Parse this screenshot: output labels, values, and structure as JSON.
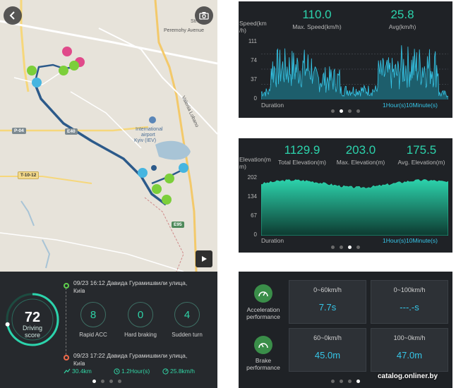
{
  "map": {
    "labels": {
      "street_top": "Street",
      "peremohy": "Peremohy Avenue",
      "valeriia": "Valeriia Lobano",
      "airport_line1": "International",
      "airport_line2": "airport",
      "airport_line3": "Kyiv (IEV)"
    },
    "road_badges": [
      "P-04",
      "E40",
      "T-10-12",
      "E95"
    ],
    "icons": [
      "back-arrow-icon",
      "camera-icon",
      "play-icon"
    ]
  },
  "summary": {
    "score": "72",
    "score_label_1": "Driving",
    "score_label_2": "score",
    "start_line1": "09/23 16:12 Давида Гурамишвили улица,",
    "start_line2": "Київ",
    "end_line1": "09/23 17:22 Давида Гурамишвили улица,",
    "end_line2": "Київ",
    "stats": [
      {
        "value": "8",
        "label": "Rapid ACC"
      },
      {
        "value": "0",
        "label": "Hard braking"
      },
      {
        "value": "4",
        "label": "Sudden turn"
      }
    ],
    "distance": "30.4km",
    "duration": "1.2Hour(s)",
    "avg_speed": "25.8km/h",
    "score_fraction": 0.72
  },
  "speed_panel": {
    "ylabel_1": "Speed(km",
    "ylabel_2": "/h)",
    "max_value": "110.0",
    "max_label": "Max. Speed(km/h)",
    "avg_value": "25.8",
    "avg_label": "Avg(km/h)",
    "ticks": [
      "111",
      "74",
      "37",
      "0"
    ],
    "duration_label": "Duration",
    "x_unit": "1Hour(s)10Minute(s)"
  },
  "elevation_panel": {
    "ylabel_1": "Elevation(m",
    "ylabel_2": "m)",
    "total_value": "1129.9",
    "total_label": "Total Elevation(m)",
    "max_value": "203.0",
    "max_label": "Max. Elevation(m)",
    "avg_value": "175.5",
    "avg_label": "Avg. Elevation(m)",
    "ticks": [
      "202",
      "134",
      "67",
      "0"
    ],
    "duration_label": "Duration",
    "x_unit": "1Hour(s)10Minute(s)"
  },
  "performance": {
    "acc_label_1": "Acceleration",
    "acc_label_2": "performance",
    "brake_label_1": "Brake",
    "brake_label_2": "performance",
    "cards": [
      {
        "title": "0~60km/h",
        "value": "7.7s"
      },
      {
        "title": "0~100km/h",
        "value": "---.-s"
      },
      {
        "title": "60~0km/h",
        "value": "45.0m"
      },
      {
        "title": "100~0km/h",
        "value": "47.0m"
      }
    ]
  },
  "watermark": "catalog.onliner.by",
  "colors": {
    "accent_green": "#2cd3ac",
    "accent_cyan": "#36c6e8",
    "panel_bg": "#1f2226"
  }
}
